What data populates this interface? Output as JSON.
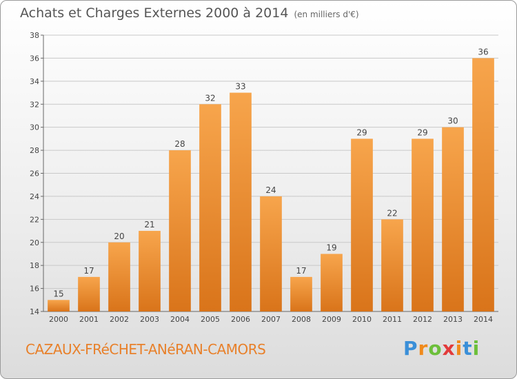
{
  "header": {
    "title": "Achats et Charges Externes 2000 à 2014",
    "subtitle": "(en milliers d'€)"
  },
  "footer": {
    "commune": "CAZAUX-FRéCHET-ANéRAN-CAMORS",
    "brand": "Proxiti"
  },
  "colors": {
    "bar_light": "#f7a54c",
    "bar_dark": "#d9741a",
    "grid": "#c8c8c8"
  },
  "chart_data": {
    "type": "bar",
    "title": "Achats et Charges Externes 2000 à 2014",
    "subtitle": "(en milliers d'€)",
    "xlabel": "",
    "ylabel": "",
    "categories": [
      "2000",
      "2001",
      "2002",
      "2003",
      "2004",
      "2005",
      "2006",
      "2007",
      "2008",
      "2009",
      "2010",
      "2011",
      "2012",
      "2013",
      "2014"
    ],
    "values": [
      15,
      17,
      20,
      21,
      28,
      32,
      33,
      24,
      17,
      19,
      29,
      22,
      29,
      30,
      36
    ],
    "ylim": [
      14,
      38
    ],
    "yticks": [
      14,
      16,
      18,
      20,
      22,
      24,
      26,
      28,
      30,
      32,
      34,
      36,
      38
    ],
    "grid": true
  }
}
